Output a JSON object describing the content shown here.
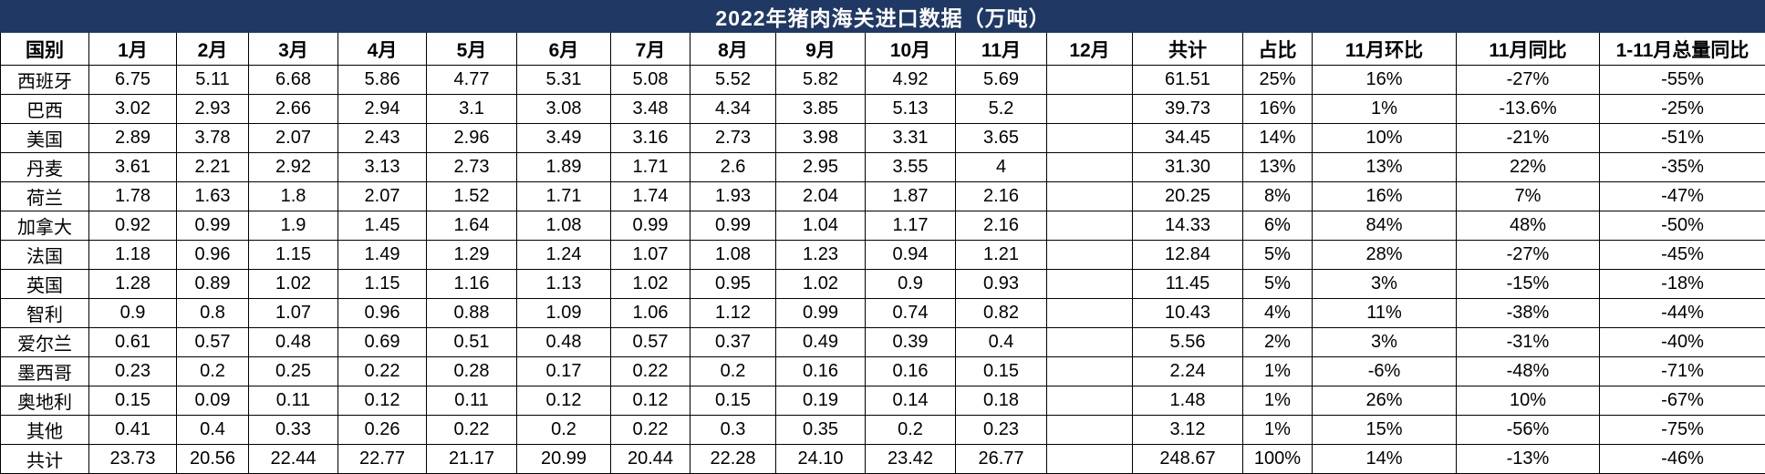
{
  "colors": {
    "title_bg": "#1f3864",
    "title_text": "#ffffff",
    "cell_bg": "#ffffff",
    "border": "#000000",
    "text": "#000000"
  },
  "chart_data": {
    "type": "table",
    "title": "2022年猪肉海关进口数据（万吨）",
    "columns": [
      "国别",
      "1月",
      "2月",
      "3月",
      "4月",
      "5月",
      "6月",
      "7月",
      "8月",
      "9月",
      "10月",
      "11月",
      "12月",
      "共计",
      "占比",
      "11月环比",
      "11月同比",
      "1-11月总量同比"
    ],
    "rows": [
      [
        "西班牙",
        "6.75",
        "5.11",
        "6.68",
        "5.86",
        "4.77",
        "5.31",
        "5.08",
        "5.52",
        "5.82",
        "4.92",
        "5.69",
        "",
        "61.51",
        "25%",
        "16%",
        "-27%",
        "-55%"
      ],
      [
        "巴西",
        "3.02",
        "2.93",
        "2.66",
        "2.94",
        "3.1",
        "3.08",
        "3.48",
        "4.34",
        "3.85",
        "5.13",
        "5.2",
        "",
        "39.73",
        "16%",
        "1%",
        "-13.6%",
        "-25%"
      ],
      [
        "美国",
        "2.89",
        "3.78",
        "2.07",
        "2.43",
        "2.96",
        "3.49",
        "3.16",
        "2.73",
        "3.98",
        "3.31",
        "3.65",
        "",
        "34.45",
        "14%",
        "10%",
        "-21%",
        "-51%"
      ],
      [
        "丹麦",
        "3.61",
        "2.21",
        "2.92",
        "3.13",
        "2.73",
        "1.89",
        "1.71",
        "2.6",
        "2.95",
        "3.55",
        "4",
        "",
        "31.30",
        "13%",
        "13%",
        "22%",
        "-35%"
      ],
      [
        "荷兰",
        "1.78",
        "1.63",
        "1.8",
        "2.07",
        "1.52",
        "1.71",
        "1.74",
        "1.93",
        "2.04",
        "1.87",
        "2.16",
        "",
        "20.25",
        "8%",
        "16%",
        "7%",
        "-47%"
      ],
      [
        "加拿大",
        "0.92",
        "0.99",
        "1.9",
        "1.45",
        "1.64",
        "1.08",
        "0.99",
        "0.99",
        "1.04",
        "1.17",
        "2.16",
        "",
        "14.33",
        "6%",
        "84%",
        "48%",
        "-50%"
      ],
      [
        "法国",
        "1.18",
        "0.96",
        "1.15",
        "1.49",
        "1.29",
        "1.24",
        "1.07",
        "1.08",
        "1.23",
        "0.94",
        "1.21",
        "",
        "12.84",
        "5%",
        "28%",
        "-27%",
        "-45%"
      ],
      [
        "英国",
        "1.28",
        "0.89",
        "1.02",
        "1.15",
        "1.16",
        "1.13",
        "1.02",
        "0.95",
        "1.02",
        "0.9",
        "0.93",
        "",
        "11.45",
        "5%",
        "3%",
        "-15%",
        "-18%"
      ],
      [
        "智利",
        "0.9",
        "0.8",
        "1.07",
        "0.96",
        "0.88",
        "1.09",
        "1.06",
        "1.12",
        "0.99",
        "0.74",
        "0.82",
        "",
        "10.43",
        "4%",
        "11%",
        "-38%",
        "-44%"
      ],
      [
        "爱尔兰",
        "0.61",
        "0.57",
        "0.48",
        "0.69",
        "0.51",
        "0.48",
        "0.57",
        "0.37",
        "0.49",
        "0.39",
        "0.4",
        "",
        "5.56",
        "2%",
        "3%",
        "-31%",
        "-40%"
      ],
      [
        "墨西哥",
        "0.23",
        "0.2",
        "0.25",
        "0.22",
        "0.28",
        "0.17",
        "0.22",
        "0.2",
        "0.16",
        "0.16",
        "0.15",
        "",
        "2.24",
        "1%",
        "-6%",
        "-48%",
        "-71%"
      ],
      [
        "奥地利",
        "0.15",
        "0.09",
        "0.11",
        "0.12",
        "0.11",
        "0.12",
        "0.12",
        "0.15",
        "0.19",
        "0.14",
        "0.18",
        "",
        "1.48",
        "1%",
        "26%",
        "10%",
        "-67%"
      ],
      [
        "其他",
        "0.41",
        "0.4",
        "0.33",
        "0.26",
        "0.22",
        "0.2",
        "0.22",
        "0.3",
        "0.35",
        "0.2",
        "0.23",
        "",
        "3.12",
        "1%",
        "15%",
        "-56%",
        "-75%"
      ],
      [
        "共计",
        "23.73",
        "20.56",
        "22.44",
        "22.77",
        "21.17",
        "20.99",
        "20.44",
        "22.28",
        "24.10",
        "23.42",
        "26.77",
        "",
        "248.67",
        "100%",
        "14%",
        "-13%",
        "-46%"
      ]
    ]
  }
}
